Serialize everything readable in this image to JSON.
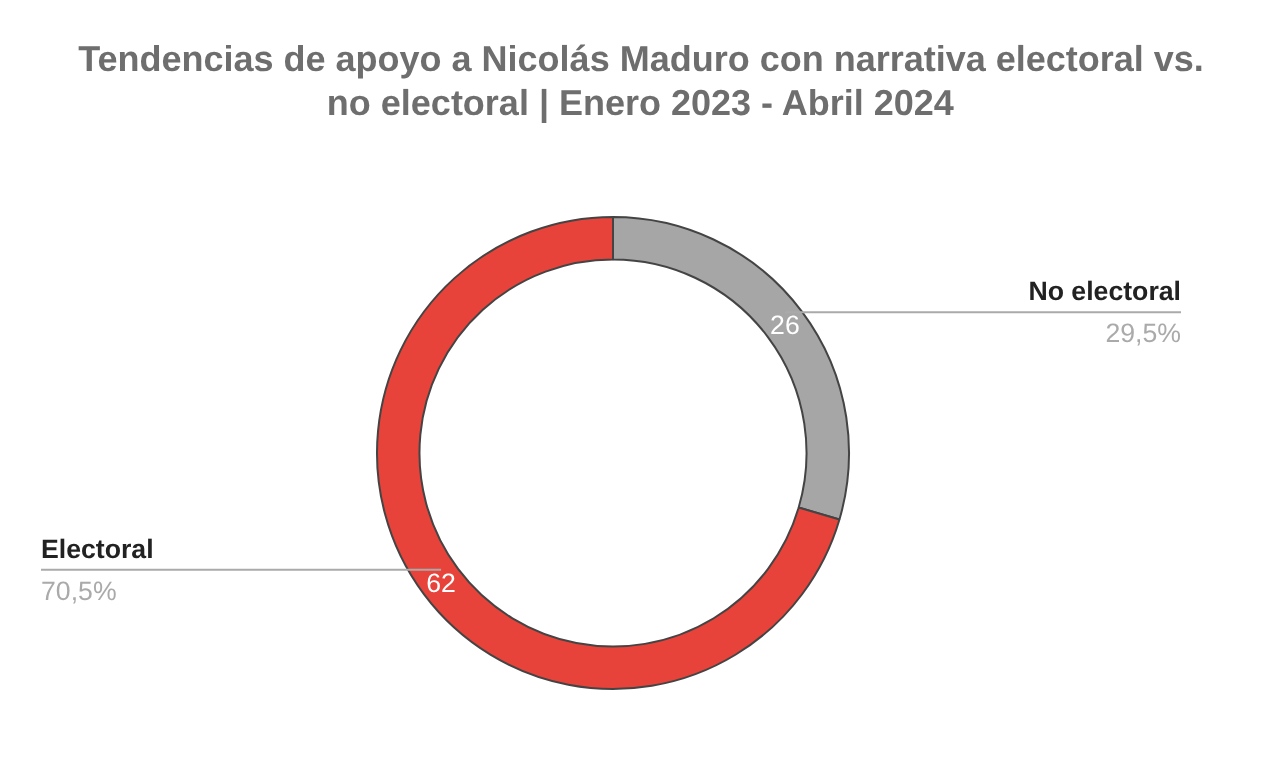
{
  "chart_data": {
    "type": "donut",
    "title": "Tendencias de apoyo a Nicolás Maduro con narrativa electoral vs. no electoral | Enero 2023 - Abril 2024",
    "categories": [
      "No electoral",
      "Electoral"
    ],
    "values": [
      26,
      62
    ],
    "colors": [
      "#a6a6a6",
      "#e8433a"
    ],
    "data_labels": true,
    "annotations": [
      "29,5%",
      "70,5%"
    ]
  }
}
